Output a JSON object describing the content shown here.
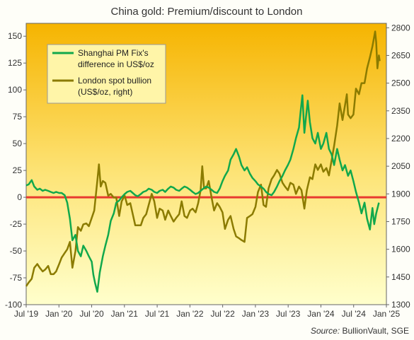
{
  "chart_data": {
    "type": "line",
    "title": "China gold: Premium/discount  to London",
    "source": {
      "label": "Source:",
      "text": " BullionVault, SGE"
    },
    "x_ticks": [
      "Jul '19",
      "Jan '20",
      "Jul '20",
      "Jan '21",
      "Jul '21",
      "Jan '22",
      "Jul '22",
      "Jan '23",
      "Jul '23",
      "Jan '24",
      "Jul '24",
      "Jan '25"
    ],
    "x_range": [
      "2019-07-01",
      "2025-01-01"
    ],
    "y_left": {
      "ticks": [
        "150",
        "125",
        "100",
        "75",
        "50",
        "25",
        "0",
        "-25",
        "-50",
        "-75",
        "-100"
      ],
      "range": [
        -100,
        162
      ]
    },
    "y_right": {
      "ticks": [
        "2800",
        "2650",
        "2500",
        "2350",
        "2200",
        "2050",
        "1900",
        "1750",
        "1600",
        "1450",
        "1300"
      ],
      "range": [
        1300,
        2824
      ]
    },
    "zero_line": 0,
    "grid": false,
    "legend_placement": "top-left",
    "colors": {
      "premium": "#11a84c",
      "spot": "#8b7b00",
      "zero": "#e83a2f",
      "bg_top": "#f6b400",
      "bg_bottom": "#ffffcc"
    },
    "series": [
      {
        "name_lines": [
          "Shanghai PM Fix's",
          "difference in US$/oz"
        ],
        "axis": "left",
        "points": [
          [
            "2019-07-01",
            11
          ],
          [
            "2019-07-15",
            12
          ],
          [
            "2019-08-01",
            16
          ],
          [
            "2019-08-15",
            10
          ],
          [
            "2019-09-01",
            7
          ],
          [
            "2019-09-15",
            8
          ],
          [
            "2019-10-01",
            6
          ],
          [
            "2019-10-15",
            7
          ],
          [
            "2019-11-01",
            6
          ],
          [
            "2019-11-15",
            5
          ],
          [
            "2019-12-01",
            4
          ],
          [
            "2019-12-15",
            5
          ],
          [
            "2020-01-01",
            4
          ],
          [
            "2020-01-15",
            4
          ],
          [
            "2020-02-01",
            2
          ],
          [
            "2020-02-15",
            -5
          ],
          [
            "2020-03-01",
            -20
          ],
          [
            "2020-03-15",
            -40
          ],
          [
            "2020-04-01",
            -35
          ],
          [
            "2020-04-15",
            -50
          ],
          [
            "2020-05-01",
            -55
          ],
          [
            "2020-05-15",
            -45
          ],
          [
            "2020-06-01",
            -50
          ],
          [
            "2020-06-15",
            -55
          ],
          [
            "2020-07-01",
            -60
          ],
          [
            "2020-07-10",
            -72
          ],
          [
            "2020-07-20",
            -80
          ],
          [
            "2020-08-01",
            -88
          ],
          [
            "2020-08-15",
            -70
          ],
          [
            "2020-09-01",
            -55
          ],
          [
            "2020-09-15",
            -45
          ],
          [
            "2020-10-01",
            -35
          ],
          [
            "2020-10-15",
            -22
          ],
          [
            "2020-11-01",
            -15
          ],
          [
            "2020-11-15",
            -5
          ],
          [
            "2020-12-01",
            -3
          ],
          [
            "2020-12-15",
            0
          ],
          [
            "2021-01-01",
            3
          ],
          [
            "2021-01-15",
            5
          ],
          [
            "2021-02-01",
            6
          ],
          [
            "2021-02-15",
            4
          ],
          [
            "2021-03-01",
            2
          ],
          [
            "2021-03-15",
            1
          ],
          [
            "2021-04-01",
            3
          ],
          [
            "2021-04-15",
            5
          ],
          [
            "2021-05-01",
            6
          ],
          [
            "2021-05-15",
            8
          ],
          [
            "2021-06-01",
            7
          ],
          [
            "2021-06-15",
            5
          ],
          [
            "2021-07-01",
            4
          ],
          [
            "2021-07-15",
            6
          ],
          [
            "2021-08-01",
            7
          ],
          [
            "2021-08-15",
            5
          ],
          [
            "2021-09-01",
            8
          ],
          [
            "2021-09-15",
            10
          ],
          [
            "2021-10-01",
            9
          ],
          [
            "2021-10-15",
            7
          ],
          [
            "2021-11-01",
            6
          ],
          [
            "2021-11-15",
            8
          ],
          [
            "2021-12-01",
            10
          ],
          [
            "2021-12-15",
            9
          ],
          [
            "2022-01-01",
            7
          ],
          [
            "2022-01-15",
            5
          ],
          [
            "2022-02-01",
            3
          ],
          [
            "2022-02-15",
            4
          ],
          [
            "2022-03-01",
            6
          ],
          [
            "2022-03-15",
            8
          ],
          [
            "2022-04-01",
            10
          ],
          [
            "2022-04-15",
            9
          ],
          [
            "2022-05-01",
            7
          ],
          [
            "2022-05-15",
            5
          ],
          [
            "2022-06-01",
            4
          ],
          [
            "2022-06-15",
            8
          ],
          [
            "2022-07-01",
            15
          ],
          [
            "2022-07-15",
            20
          ],
          [
            "2022-08-01",
            25
          ],
          [
            "2022-08-15",
            35
          ],
          [
            "2022-09-01",
            40
          ],
          [
            "2022-09-15",
            45
          ],
          [
            "2022-10-01",
            38
          ],
          [
            "2022-10-15",
            30
          ],
          [
            "2022-11-01",
            25
          ],
          [
            "2022-11-15",
            28
          ],
          [
            "2022-12-01",
            22
          ],
          [
            "2022-12-15",
            18
          ],
          [
            "2023-01-01",
            15
          ],
          [
            "2023-01-15",
            12
          ],
          [
            "2023-02-01",
            10
          ],
          [
            "2023-02-15",
            8
          ],
          [
            "2023-03-01",
            5
          ],
          [
            "2023-03-15",
            3
          ],
          [
            "2023-04-01",
            2
          ],
          [
            "2023-04-15",
            5
          ],
          [
            "2023-05-01",
            10
          ],
          [
            "2023-05-15",
            15
          ],
          [
            "2023-06-01",
            20
          ],
          [
            "2023-06-15",
            25
          ],
          [
            "2023-07-01",
            30
          ],
          [
            "2023-07-15",
            35
          ],
          [
            "2023-08-01",
            45
          ],
          [
            "2023-08-15",
            55
          ],
          [
            "2023-09-01",
            65
          ],
          [
            "2023-09-10",
            80
          ],
          [
            "2023-09-20",
            95
          ],
          [
            "2023-10-01",
            60
          ],
          [
            "2023-10-10",
            75
          ],
          [
            "2023-10-20",
            90
          ],
          [
            "2023-11-01",
            70
          ],
          [
            "2023-11-15",
            55
          ],
          [
            "2023-12-01",
            50
          ],
          [
            "2023-12-15",
            60
          ],
          [
            "2024-01-01",
            45
          ],
          [
            "2024-01-15",
            50
          ],
          [
            "2024-02-01",
            60
          ],
          [
            "2024-02-15",
            45
          ],
          [
            "2024-03-01",
            40
          ],
          [
            "2024-03-15",
            30
          ],
          [
            "2024-04-01",
            45
          ],
          [
            "2024-04-15",
            35
          ],
          [
            "2024-05-01",
            25
          ],
          [
            "2024-05-15",
            30
          ],
          [
            "2024-06-01",
            20
          ],
          [
            "2024-06-15",
            25
          ],
          [
            "2024-07-01",
            15
          ],
          [
            "2024-07-15",
            5
          ],
          [
            "2024-08-01",
            -5
          ],
          [
            "2024-08-15",
            -15
          ],
          [
            "2024-09-01",
            -5
          ],
          [
            "2024-09-15",
            -20
          ],
          [
            "2024-10-01",
            -30
          ],
          [
            "2024-10-15",
            -10
          ],
          [
            "2024-10-25",
            -25
          ],
          [
            "2024-11-05",
            -15
          ],
          [
            "2024-11-20",
            -5
          ]
        ]
      },
      {
        "name_lines": [
          "London spot bullion",
          "(US$/oz, right)"
        ],
        "axis": "right",
        "points": [
          [
            "2019-07-01",
            1400
          ],
          [
            "2019-07-15",
            1420
          ],
          [
            "2019-08-01",
            1440
          ],
          [
            "2019-08-15",
            1500
          ],
          [
            "2019-09-01",
            1520
          ],
          [
            "2019-09-15",
            1500
          ],
          [
            "2019-10-01",
            1480
          ],
          [
            "2019-10-15",
            1490
          ],
          [
            "2019-11-01",
            1510
          ],
          [
            "2019-11-15",
            1465
          ],
          [
            "2019-12-01",
            1465
          ],
          [
            "2019-12-15",
            1480
          ],
          [
            "2020-01-01",
            1520
          ],
          [
            "2020-01-15",
            1555
          ],
          [
            "2020-02-01",
            1580
          ],
          [
            "2020-02-15",
            1600
          ],
          [
            "2020-03-01",
            1640
          ],
          [
            "2020-03-15",
            1500
          ],
          [
            "2020-04-01",
            1590
          ],
          [
            "2020-04-15",
            1720
          ],
          [
            "2020-05-01",
            1700
          ],
          [
            "2020-05-15",
            1735
          ],
          [
            "2020-06-01",
            1740
          ],
          [
            "2020-06-15",
            1725
          ],
          [
            "2020-07-01",
            1770
          ],
          [
            "2020-07-15",
            1810
          ],
          [
            "2020-08-01",
            1970
          ],
          [
            "2020-08-10",
            2060
          ],
          [
            "2020-08-20",
            1940
          ],
          [
            "2020-09-01",
            1970
          ],
          [
            "2020-09-15",
            1960
          ],
          [
            "2020-10-01",
            1890
          ],
          [
            "2020-10-15",
            1900
          ],
          [
            "2020-11-01",
            1880
          ],
          [
            "2020-11-15",
            1880
          ],
          [
            "2020-12-01",
            1780
          ],
          [
            "2020-12-15",
            1860
          ],
          [
            "2021-01-01",
            1890
          ],
          [
            "2021-01-15",
            1840
          ],
          [
            "2021-02-01",
            1850
          ],
          [
            "2021-02-15",
            1790
          ],
          [
            "2021-03-01",
            1730
          ],
          [
            "2021-03-15",
            1730
          ],
          [
            "2021-04-01",
            1730
          ],
          [
            "2021-04-15",
            1770
          ],
          [
            "2021-05-01",
            1790
          ],
          [
            "2021-05-15",
            1840
          ],
          [
            "2021-06-01",
            1900
          ],
          [
            "2021-06-15",
            1860
          ],
          [
            "2021-07-01",
            1770
          ],
          [
            "2021-07-15",
            1820
          ],
          [
            "2021-08-01",
            1810
          ],
          [
            "2021-08-15",
            1760
          ],
          [
            "2021-09-01",
            1810
          ],
          [
            "2021-09-15",
            1780
          ],
          [
            "2021-10-01",
            1750
          ],
          [
            "2021-10-15",
            1770
          ],
          [
            "2021-11-01",
            1790
          ],
          [
            "2021-11-15",
            1860
          ],
          [
            "2021-12-01",
            1780
          ],
          [
            "2021-12-15",
            1770
          ],
          [
            "2022-01-01",
            1810
          ],
          [
            "2022-01-15",
            1820
          ],
          [
            "2022-02-01",
            1800
          ],
          [
            "2022-02-15",
            1850
          ],
          [
            "2022-03-01",
            1920
          ],
          [
            "2022-03-10",
            2050
          ],
          [
            "2022-03-20",
            1930
          ],
          [
            "2022-04-01",
            1930
          ],
          [
            "2022-04-15",
            1970
          ],
          [
            "2022-05-01",
            1880
          ],
          [
            "2022-05-15",
            1810
          ],
          [
            "2022-06-01",
            1850
          ],
          [
            "2022-06-15",
            1830
          ],
          [
            "2022-07-01",
            1800
          ],
          [
            "2022-07-15",
            1710
          ],
          [
            "2022-08-01",
            1760
          ],
          [
            "2022-08-15",
            1780
          ],
          [
            "2022-09-01",
            1710
          ],
          [
            "2022-09-15",
            1670
          ],
          [
            "2022-10-01",
            1660
          ],
          [
            "2022-10-15",
            1650
          ],
          [
            "2022-11-01",
            1640
          ],
          [
            "2022-11-15",
            1770
          ],
          [
            "2022-12-01",
            1780
          ],
          [
            "2022-12-15",
            1790
          ],
          [
            "2023-01-01",
            1830
          ],
          [
            "2023-01-15",
            1910
          ],
          [
            "2023-02-01",
            1950
          ],
          [
            "2023-02-15",
            1840
          ],
          [
            "2023-03-01",
            1830
          ],
          [
            "2023-03-15",
            1930
          ],
          [
            "2023-04-01",
            1980
          ],
          [
            "2023-04-15",
            2000
          ],
          [
            "2023-05-01",
            2030
          ],
          [
            "2023-05-15",
            2010
          ],
          [
            "2023-06-01",
            1960
          ],
          [
            "2023-06-15",
            1940
          ],
          [
            "2023-07-01",
            1920
          ],
          [
            "2023-07-15",
            1960
          ],
          [
            "2023-08-01",
            1950
          ],
          [
            "2023-08-15",
            1900
          ],
          [
            "2023-09-01",
            1940
          ],
          [
            "2023-09-15",
            1920
          ],
          [
            "2023-10-01",
            1820
          ],
          [
            "2023-10-15",
            1920
          ],
          [
            "2023-11-01",
            1990
          ],
          [
            "2023-11-15",
            1980
          ],
          [
            "2023-12-01",
            2060
          ],
          [
            "2023-12-15",
            2030
          ],
          [
            "2024-01-01",
            2060
          ],
          [
            "2024-01-15",
            2020
          ],
          [
            "2024-02-01",
            2040
          ],
          [
            "2024-02-15",
            2000
          ],
          [
            "2024-03-01",
            2080
          ],
          [
            "2024-03-15",
            2160
          ],
          [
            "2024-04-01",
            2270
          ],
          [
            "2024-04-15",
            2390
          ],
          [
            "2024-05-01",
            2300
          ],
          [
            "2024-05-15",
            2380
          ],
          [
            "2024-05-25",
            2440
          ],
          [
            "2024-06-01",
            2330
          ],
          [
            "2024-06-15",
            2310
          ],
          [
            "2024-07-01",
            2330
          ],
          [
            "2024-07-15",
            2470
          ],
          [
            "2024-08-01",
            2440
          ],
          [
            "2024-08-15",
            2500
          ],
          [
            "2024-09-01",
            2500
          ],
          [
            "2024-09-15",
            2580
          ],
          [
            "2024-10-01",
            2640
          ],
          [
            "2024-10-15",
            2700
          ],
          [
            "2024-10-30",
            2780
          ],
          [
            "2024-11-05",
            2720
          ],
          [
            "2024-11-12",
            2580
          ],
          [
            "2024-11-20",
            2650
          ],
          [
            "2024-11-25",
            2620
          ]
        ]
      }
    ]
  }
}
